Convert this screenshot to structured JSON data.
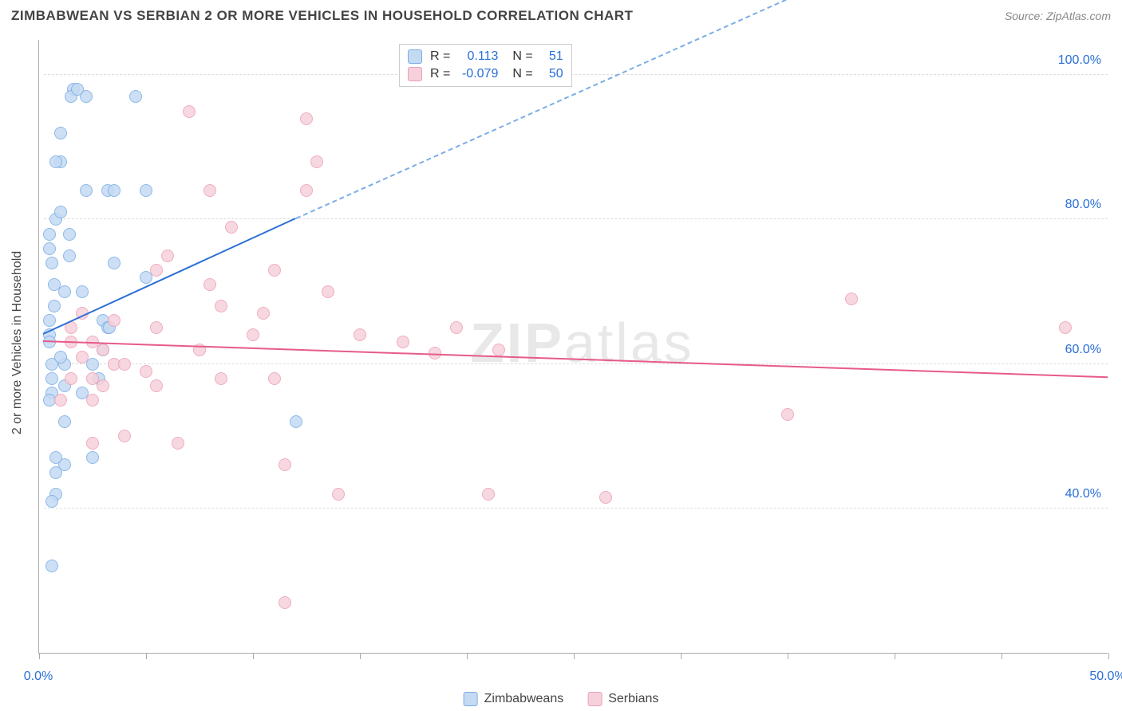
{
  "title": "ZIMBABWEAN VS SERBIAN 2 OR MORE VEHICLES IN HOUSEHOLD CORRELATION CHART",
  "source": "Source: ZipAtlas.com",
  "watermark_bold": "ZIP",
  "watermark_light": "atlas",
  "chart": {
    "type": "scatter",
    "ylabel": "2 or more Vehicles in Household",
    "xlim": [
      0,
      50
    ],
    "ylim": [
      20,
      105
    ],
    "xtick_positions": [
      0,
      5,
      10,
      15,
      20,
      25,
      30,
      35,
      40,
      45,
      50
    ],
    "xtick_labels": {
      "0": "0.0%",
      "50": "50.0%"
    },
    "ytick_positions": [
      40,
      60,
      80,
      100
    ],
    "ytick_labels": [
      "40.0%",
      "60.0%",
      "80.0%",
      "100.0%"
    ],
    "grid_color": "#dddddd",
    "axis_color": "#aaaaaa",
    "background_color": "#ffffff",
    "tick_label_color": "#2a6fd6",
    "point_radius": 8,
    "point_stroke_width": 1.2,
    "series": [
      {
        "name": "Zimbabweans",
        "fill": "#c4daf3",
        "stroke": "#7bade6",
        "line_color": "#2a6fd6",
        "dash_color": "#7bade6",
        "R": "0.113",
        "N": "51",
        "trend": {
          "x1": 0.2,
          "y1": 64,
          "x2_solid": 12,
          "y2_solid": 80,
          "x2_dash": 40,
          "y2_dash": 117
        },
        "points": [
          [
            0.5,
            64
          ],
          [
            0.5,
            66
          ],
          [
            0.5,
            76
          ],
          [
            0.5,
            78
          ],
          [
            0.6,
            74
          ],
          [
            0.6,
            60
          ],
          [
            0.6,
            58
          ],
          [
            0.6,
            56
          ],
          [
            0.5,
            55
          ],
          [
            0.5,
            63
          ],
          [
            0.8,
            80
          ],
          [
            0.7,
            71
          ],
          [
            0.7,
            68
          ],
          [
            1.0,
            81
          ],
          [
            1.2,
            46
          ],
          [
            1.2,
            57
          ],
          [
            1.2,
            70
          ],
          [
            1.2,
            60
          ],
          [
            1.4,
            78
          ],
          [
            1.4,
            75
          ],
          [
            1.6,
            98
          ],
          [
            1.5,
            97
          ],
          [
            1.0,
            92
          ],
          [
            1.0,
            88
          ],
          [
            0.8,
            88
          ],
          [
            0.8,
            42
          ],
          [
            0.8,
            45
          ],
          [
            0.8,
            47
          ],
          [
            2.0,
            70
          ],
          [
            2.2,
            97
          ],
          [
            2.2,
            84
          ],
          [
            2.5,
            60
          ],
          [
            2.5,
            47
          ],
          [
            3.0,
            66
          ],
          [
            3.0,
            62
          ],
          [
            3.2,
            65
          ],
          [
            3.2,
            84
          ],
          [
            3.5,
            74
          ],
          [
            3.5,
            84
          ],
          [
            5.0,
            84
          ],
          [
            5.0,
            72
          ],
          [
            4.5,
            97
          ],
          [
            0.6,
            32
          ],
          [
            0.6,
            41
          ],
          [
            1.2,
            52
          ],
          [
            2.8,
            58
          ],
          [
            3.3,
            65
          ],
          [
            12.0,
            52
          ],
          [
            1.8,
            98
          ],
          [
            1.0,
            61
          ],
          [
            2.0,
            56
          ]
        ]
      },
      {
        "name": "Serbians",
        "fill": "#f6d1db",
        "stroke": "#eda0b5",
        "line_color": "#e75a8a",
        "R": "-0.079",
        "N": "50",
        "trend": {
          "x1": 0.2,
          "y1": 63,
          "x2_solid": 50,
          "y2_solid": 58
        },
        "points": [
          [
            1.5,
            65
          ],
          [
            1.5,
            63
          ],
          [
            1.5,
            58
          ],
          [
            2.0,
            67
          ],
          [
            2.0,
            61
          ],
          [
            2.5,
            63
          ],
          [
            2.5,
            58
          ],
          [
            2.5,
            49
          ],
          [
            2.5,
            55
          ],
          [
            3.0,
            62
          ],
          [
            3.0,
            57
          ],
          [
            3.5,
            66
          ],
          [
            3.5,
            60
          ],
          [
            4.0,
            60
          ],
          [
            4.0,
            50
          ],
          [
            5.0,
            59
          ],
          [
            5.5,
            73
          ],
          [
            5.5,
            65
          ],
          [
            5.5,
            57
          ],
          [
            6.0,
            75
          ],
          [
            6.5,
            49
          ],
          [
            7.0,
            95
          ],
          [
            7.5,
            62
          ],
          [
            8.0,
            84
          ],
          [
            8.0,
            71
          ],
          [
            8.5,
            58
          ],
          [
            8.5,
            68
          ],
          [
            9.0,
            79
          ],
          [
            10.0,
            64
          ],
          [
            10.5,
            67
          ],
          [
            11.0,
            73
          ],
          [
            11.0,
            58
          ],
          [
            11.5,
            46
          ],
          [
            12.5,
            84
          ],
          [
            12.5,
            94
          ],
          [
            13.0,
            88
          ],
          [
            13.5,
            70
          ],
          [
            14.0,
            42
          ],
          [
            15.0,
            64
          ],
          [
            17.0,
            63
          ],
          [
            18.5,
            61.5
          ],
          [
            19.5,
            65
          ],
          [
            21.5,
            62
          ],
          [
            21.0,
            42
          ],
          [
            26.5,
            41.5
          ],
          [
            11.5,
            27
          ],
          [
            38.0,
            69
          ],
          [
            48.0,
            65
          ],
          [
            35.0,
            53
          ],
          [
            1.0,
            55
          ]
        ]
      }
    ]
  },
  "stats_box": {
    "R_label": "R =",
    "N_label": "N ="
  },
  "legend": {
    "items": [
      "Zimbabweans",
      "Serbians"
    ]
  }
}
